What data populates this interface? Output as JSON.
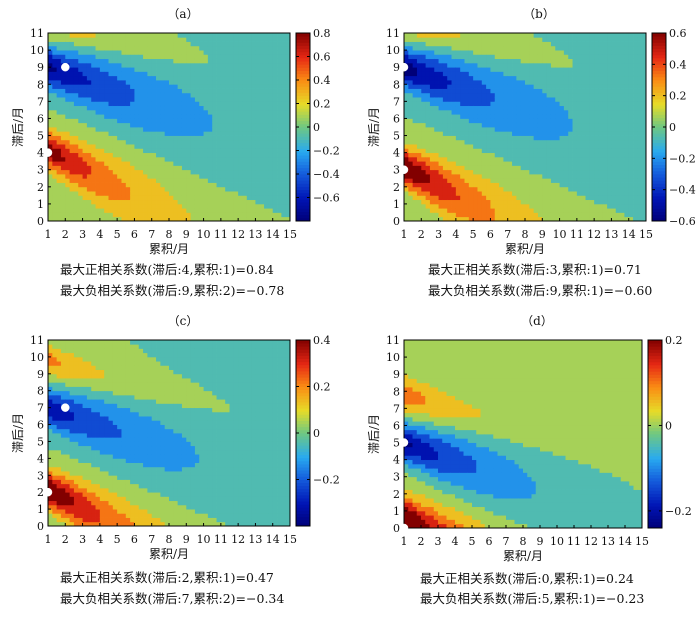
{
  "chart_data": [
    {
      "type": "heatmap",
      "subtype": "filled-contour",
      "panel_label": "（a）",
      "xlabel": "累积/月",
      "ylabel": "滞后/月",
      "x_ticks": [
        1,
        2,
        3,
        4,
        5,
        6,
        7,
        8,
        9,
        10,
        11,
        12,
        13,
        14,
        15
      ],
      "y_ticks": [
        0,
        1,
        2,
        3,
        4,
        5,
        6,
        7,
        8,
        9,
        10,
        11
      ],
      "xlim": [
        1,
        15
      ],
      "ylim": [
        0,
        11
      ],
      "colorbar": {
        "range": [
          -0.8,
          0.8
        ],
        "ticks": [
          "0.8",
          "0.6",
          "0.4",
          "0.2",
          "0",
          "−0.2",
          "−0.4",
          "−0.6"
        ]
      },
      "max_positive": {
        "lag": 4,
        "accum": 1,
        "value": 0.84
      },
      "max_negative": {
        "lag": 9,
        "accum": 2,
        "value": -0.78
      },
      "notes": [
        "最大正相关系数(滞后:4,累积:1)=0.84",
        "最大负相关系数(滞后:9,累积:2)=−0.78"
      ],
      "markers": [
        {
          "accum": 2,
          "lag": 9
        },
        {
          "accum": 1,
          "lag": 4
        }
      ]
    },
    {
      "type": "heatmap",
      "subtype": "filled-contour",
      "panel_label": "（b）",
      "xlabel": "累积/月",
      "ylabel": "滞后/月",
      "x_ticks": [
        1,
        2,
        3,
        4,
        5,
        6,
        7,
        8,
        9,
        10,
        11,
        12,
        13,
        14,
        15
      ],
      "y_ticks": [
        0,
        1,
        2,
        3,
        4,
        5,
        6,
        7,
        8,
        9,
        10,
        11
      ],
      "xlim": [
        1,
        15
      ],
      "ylim": [
        0,
        11
      ],
      "colorbar": {
        "range": [
          -0.6,
          0.6
        ],
        "ticks": [
          "0.6",
          "0.4",
          "0.2",
          "0",
          "−0.2",
          "−0.4",
          "−0.6"
        ]
      },
      "max_positive": {
        "lag": 3,
        "accum": 1,
        "value": 0.71
      },
      "max_negative": {
        "lag": 9,
        "accum": 1,
        "value": -0.6
      },
      "notes": [
        "最大正相关系数(滞后:3,累积:1)=0.71",
        "最大负相关系数(滞后:9,累积:1)=−0.60"
      ],
      "markers": [
        {
          "accum": 1,
          "lag": 9
        },
        {
          "accum": 1,
          "lag": 3
        }
      ]
    },
    {
      "type": "heatmap",
      "subtype": "filled-contour",
      "panel_label": "（c）",
      "xlabel": "累积/月",
      "ylabel": "滞后/月",
      "x_ticks": [
        1,
        2,
        3,
        4,
        5,
        6,
        7,
        8,
        9,
        10,
        11,
        12,
        13,
        14,
        15
      ],
      "y_ticks": [
        0,
        1,
        2,
        3,
        4,
        5,
        6,
        7,
        8,
        9,
        10,
        11
      ],
      "xlim": [
        1,
        15
      ],
      "ylim": [
        0,
        11
      ],
      "colorbar": {
        "range": [
          -0.4,
          0.4
        ],
        "ticks": [
          "0.4",
          "0.2",
          "0",
          "−0.2"
        ]
      },
      "max_positive": {
        "lag": 2,
        "accum": 1,
        "value": 0.47
      },
      "max_negative": {
        "lag": 7,
        "accum": 2,
        "value": -0.34
      },
      "notes": [
        "最大正相关系数(滞后:2,累积:1)=0.47",
        "最大负相关系数(滞后:7,累积:2)=−0.34"
      ],
      "markers": [
        {
          "accum": 2,
          "lag": 7
        },
        {
          "accum": 1,
          "lag": 2
        }
      ]
    },
    {
      "type": "heatmap",
      "subtype": "filled-contour",
      "panel_label": "（d）",
      "xlabel": "累积/月",
      "ylabel": "滞后/月",
      "x_ticks": [
        1,
        2,
        3,
        4,
        5,
        6,
        7,
        8,
        9,
        10,
        11,
        12,
        13,
        14,
        15
      ],
      "y_ticks": [
        0,
        1,
        2,
        3,
        4,
        5,
        6,
        7,
        8,
        9,
        10,
        11
      ],
      "xlim": [
        1,
        15
      ],
      "ylim": [
        0,
        11
      ],
      "colorbar": {
        "range": [
          -0.24,
          0.2
        ],
        "ticks": [
          "0.2",
          "0",
          "−0.2"
        ]
      },
      "max_positive": {
        "lag": 0,
        "accum": 1,
        "value": 0.24
      },
      "max_negative": {
        "lag": 5,
        "accum": 1,
        "value": -0.23
      },
      "notes": [
        "最大正相关系数(滞后:0,累积:1)=0.24",
        "最大负相关系数(滞后:5,累积:1)=−0.23"
      ],
      "markers": [
        {
          "accum": 1,
          "lag": 5
        },
        {
          "accum": 1,
          "lag": 0
        }
      ]
    }
  ]
}
